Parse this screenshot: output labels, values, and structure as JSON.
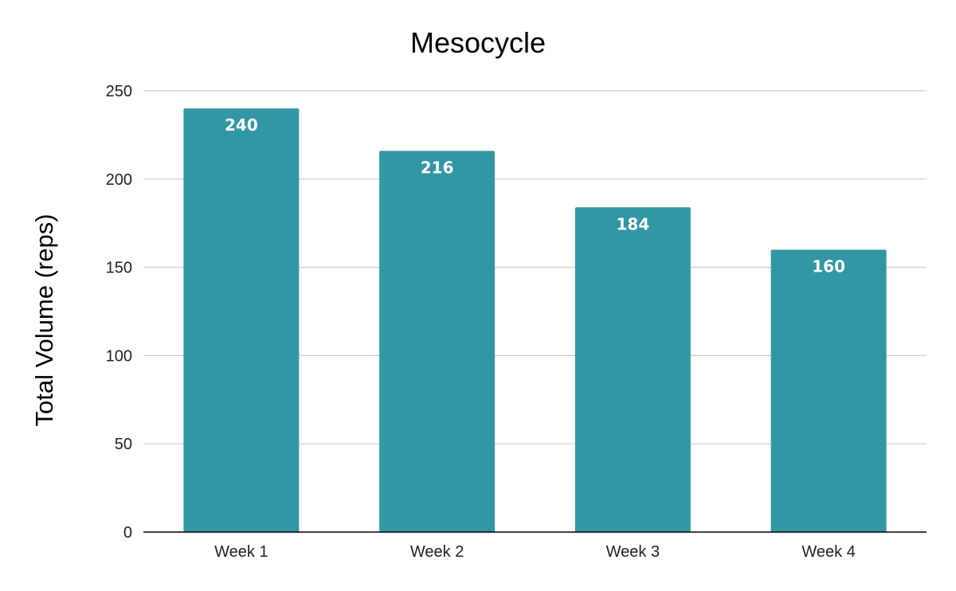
{
  "chart_data": {
    "type": "bar",
    "title": "Mesocycle",
    "xlabel": "",
    "ylabel": "Total Volume (reps)",
    "categories": [
      "Week 1",
      "Week 2",
      "Week 3",
      "Week 4"
    ],
    "values": [
      240,
      216,
      184,
      160
    ],
    "data_labels": [
      "240",
      "216",
      "184",
      "160"
    ],
    "ylim": [
      0,
      250
    ],
    "yticks": [
      0,
      50,
      100,
      150,
      200,
      250
    ],
    "ytick_labels": [
      "0",
      "50",
      "100",
      "150",
      "200",
      "250"
    ],
    "grid": true,
    "legend": "none",
    "bar_color": "#3396a4",
    "grid_color": "#cccccc",
    "axis_color": "#000000"
  }
}
